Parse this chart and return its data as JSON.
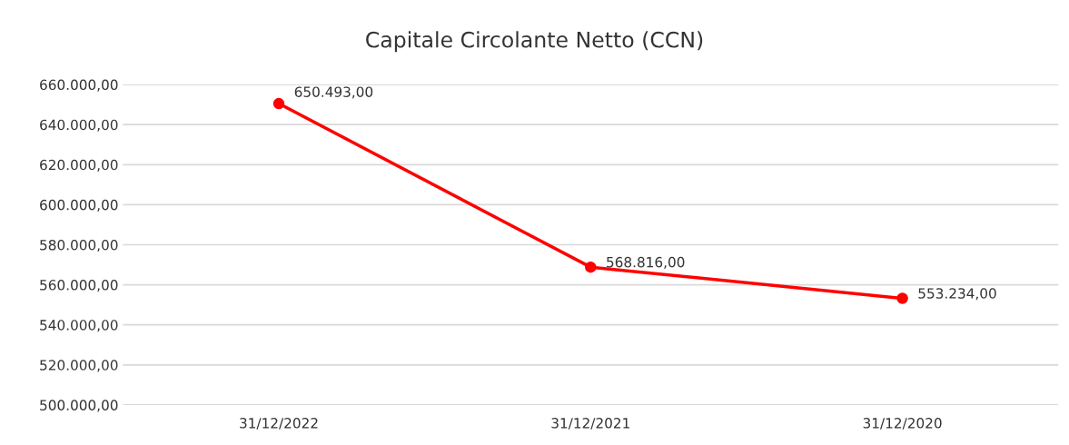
{
  "chart_data": {
    "type": "line",
    "title": "Capitale Circolante Netto (CCN)",
    "categories": [
      "31/12/2022",
      "31/12/2021",
      "31/12/2020"
    ],
    "series": [
      {
        "color": "#ff0000",
        "values": [
          650493,
          568816,
          553234
        ],
        "value_labels": [
          "650.493,00",
          "568.816,00",
          "553.234,00"
        ]
      }
    ],
    "ylim": [
      500000,
      660000
    ],
    "yticks": [
      {
        "value": 500000,
        "label": "500.000,00"
      },
      {
        "value": 520000,
        "label": "520.000,00"
      },
      {
        "value": 540000,
        "label": "540.000,00"
      },
      {
        "value": 560000,
        "label": "560.000,00"
      },
      {
        "value": 580000,
        "label": "580.000,00"
      },
      {
        "value": 600000,
        "label": "600.000,00"
      },
      {
        "value": 620000,
        "label": "620.000,00"
      },
      {
        "value": 640000,
        "label": "640.000,00"
      },
      {
        "value": 660000,
        "label": "660.000,00"
      }
    ],
    "grid": "y",
    "marker": "circle",
    "line_style": "solid"
  }
}
